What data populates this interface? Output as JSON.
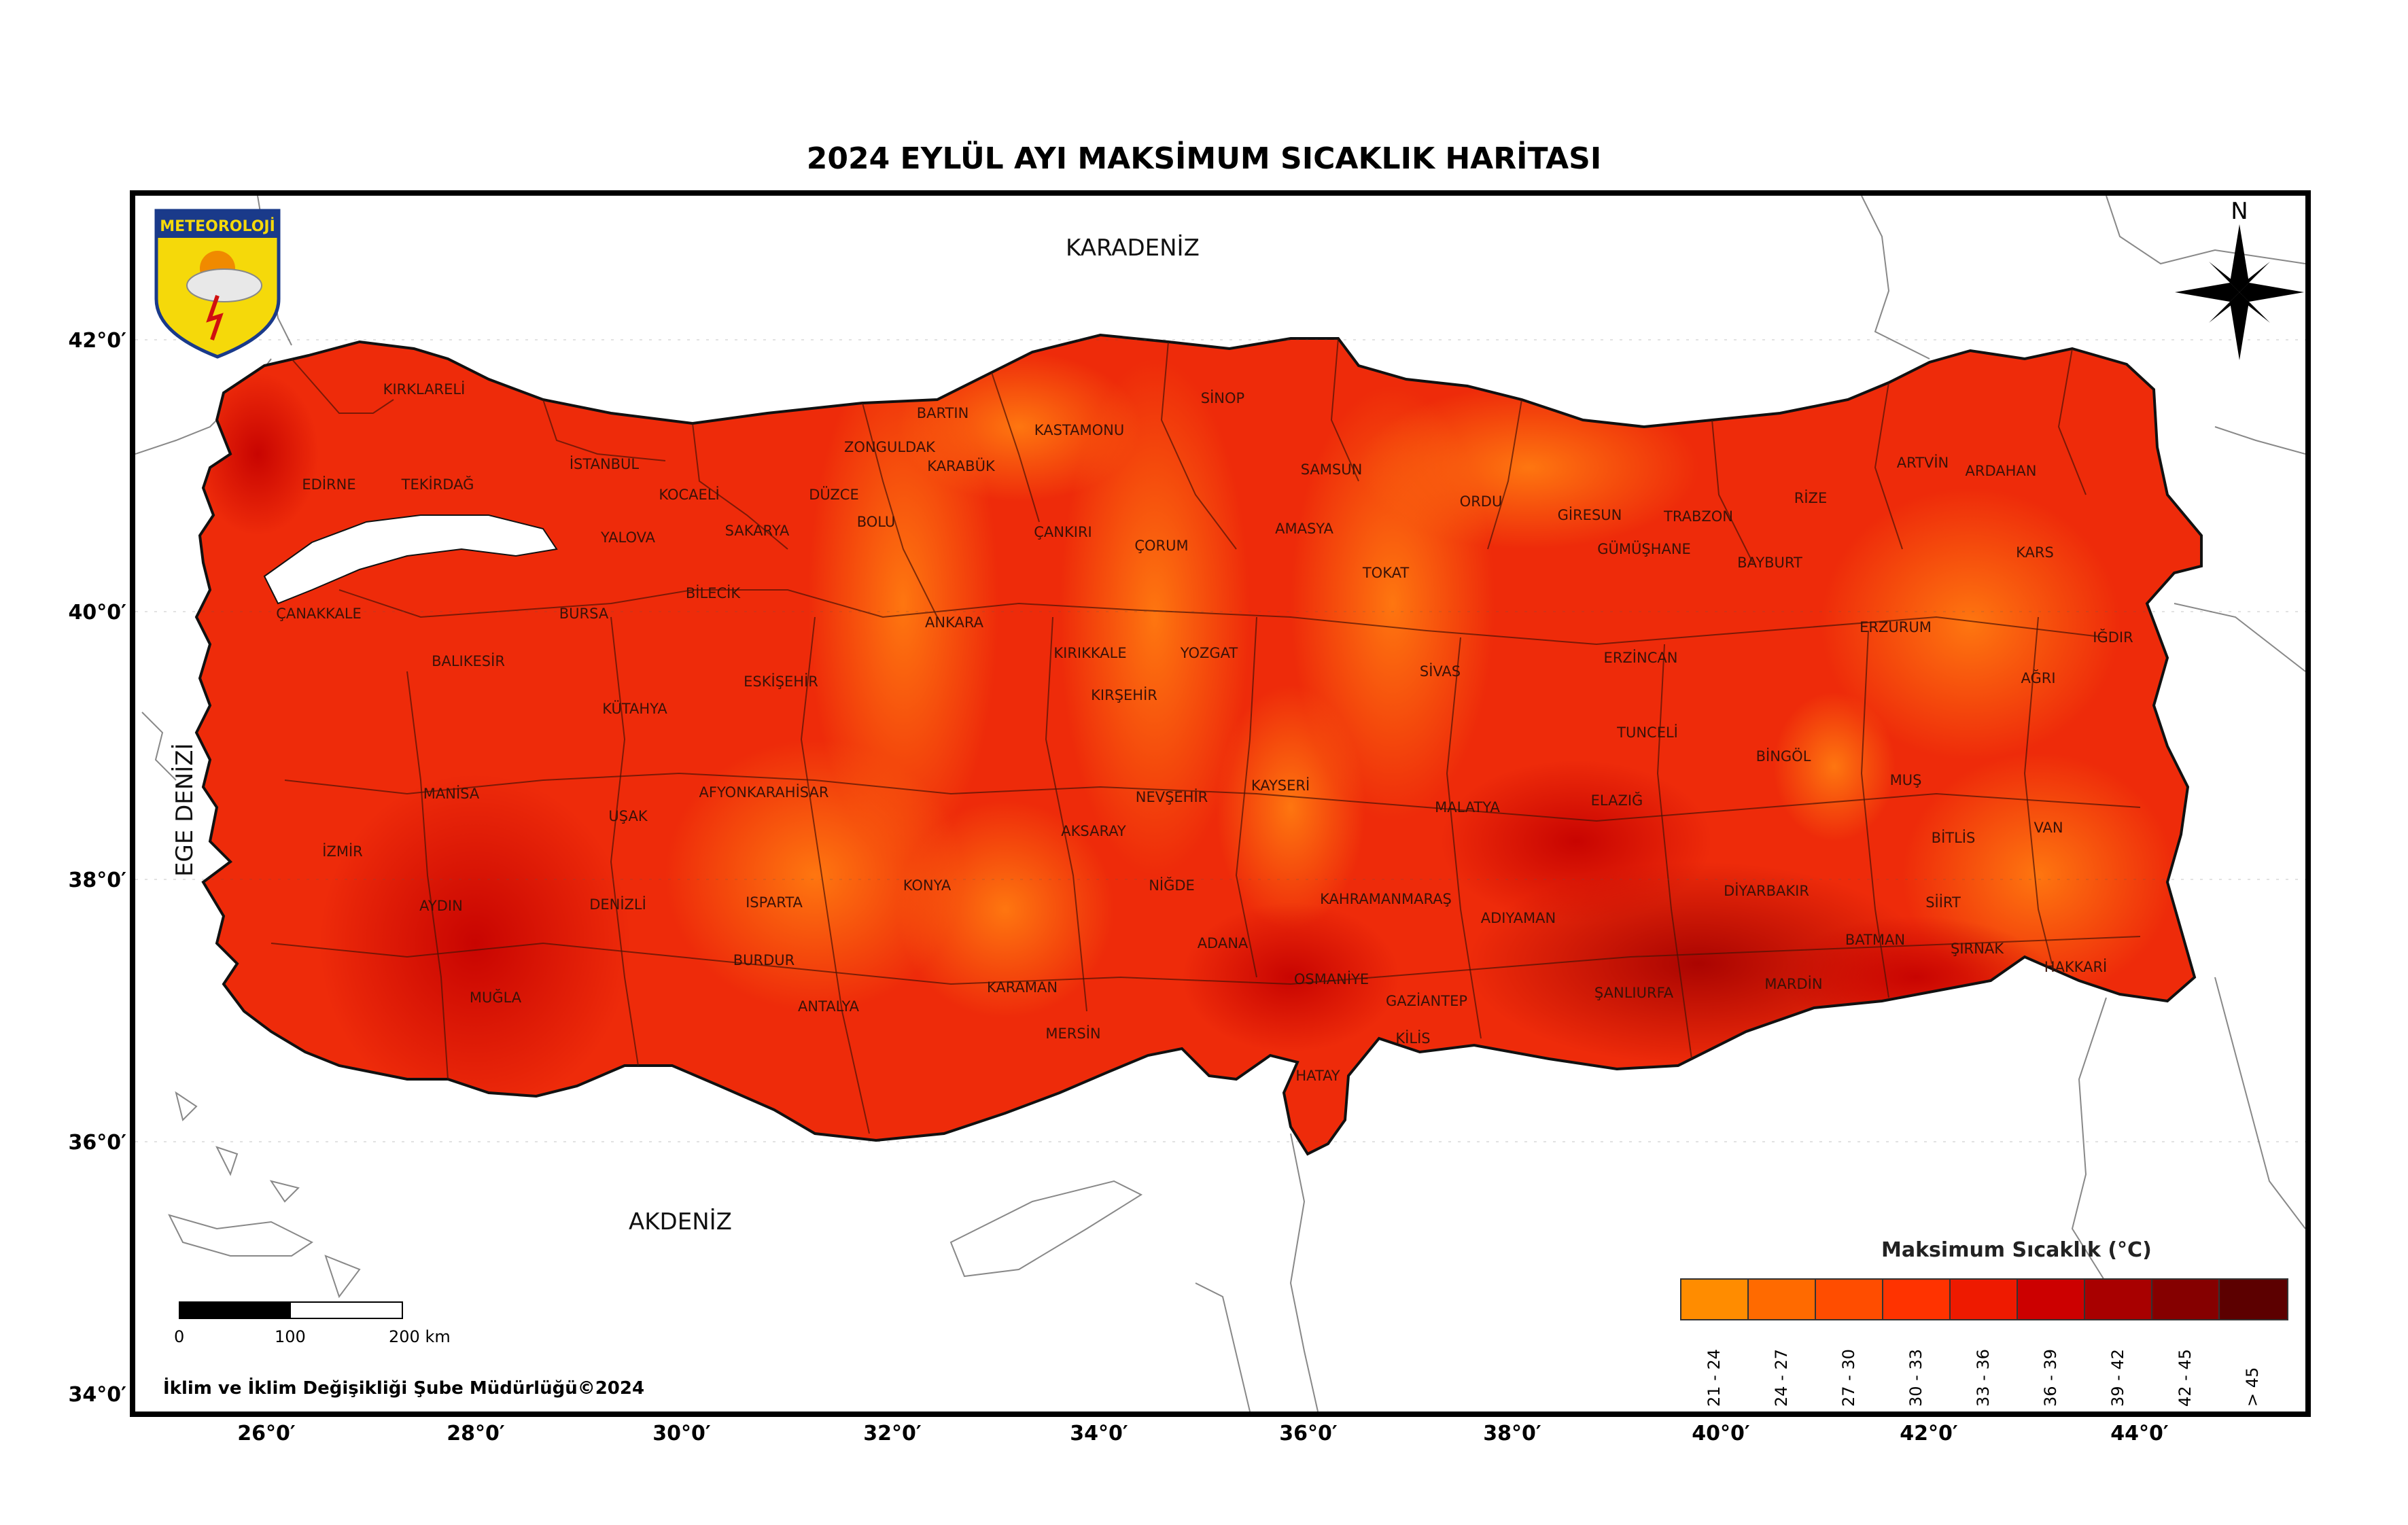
{
  "title": "2024 EYLÜL AYI MAKSİMUM SICAKLIK HARİTASI",
  "seas": {
    "north": "KARADENİZ",
    "south": "AKDENİZ",
    "west": "EGE DENİZİ"
  },
  "latitude_labels": [
    "42°0′",
    "40°0′",
    "38°0′",
    "36°0′",
    "34°0′"
  ],
  "longitude_labels": [
    "26°0′",
    "28°0′",
    "30°0′",
    "32°0′",
    "34°0′",
    "36°0′",
    "38°0′",
    "40°0′",
    "42°0′",
    "44°0′"
  ],
  "logo_text": "METEOROLOJİ",
  "compass_label": "N",
  "legend": {
    "title": "Maksimum Sıcaklık (°C)",
    "classes": [
      {
        "label": "21 - 24",
        "color": "#ff8c00"
      },
      {
        "label": "24 - 27",
        "color": "#ff6a00"
      },
      {
        "label": "27 - 30",
        "color": "#ff4d00"
      },
      {
        "label": "30 - 33",
        "color": "#ff3300"
      },
      {
        "label": "33 - 36",
        "color": "#ee1a00"
      },
      {
        "label": "36 - 39",
        "color": "#cc0000"
      },
      {
        "label": "39 - 42",
        "color": "#a80000"
      },
      {
        "label": "42 - 45",
        "color": "#850000"
      },
      {
        "label": "> 45",
        "color": "#5c0000"
      }
    ]
  },
  "scale": {
    "labels": [
      "0",
      "100",
      "200 km"
    ]
  },
  "credit": "İklim ve İklim Değişikliği Şube Müdürlüğü©2024",
  "provinces": [
    "KIRKLARELİ",
    "EDİRNE",
    "TEKİRDAĞ",
    "İSTANBUL",
    "KOCAELİ",
    "YALOVA",
    "SAKARYA",
    "DÜZCE",
    "BOLU",
    "ZONGULDAK",
    "BARTIN",
    "KARABÜK",
    "KASTAMONU",
    "SİNOP",
    "SAMSUN",
    "ÇANKIRI",
    "ÇORUM",
    "AMASYA",
    "TOKAT",
    "ORDU",
    "GİRESUN",
    "TRABZON",
    "RİZE",
    "ARTVİN",
    "ARDAHAN",
    "KARS",
    "IĞDIR",
    "AĞRI",
    "ERZURUM",
    "BAYBURT",
    "GÜMÜŞHANE",
    "ERZİNCAN",
    "TUNCELİ",
    "BİNGÖL",
    "MUŞ",
    "BİTLİS",
    "VAN",
    "HAKKARİ",
    "ŞIRNAK",
    "SİİRT",
    "BATMAN",
    "MARDİN",
    "DİYARBAKIR",
    "ŞANLIURFA",
    "ADIYAMAN",
    "MALATYA",
    "ELAZIĞ",
    "SİVAS",
    "YOZGAT",
    "KIRIKKALE",
    "KIRŞEHİR",
    "ANKARA",
    "ESKİŞEHİR",
    "BİLECİK",
    "BURSA",
    "BALIKESİR",
    "ÇANAKKALE",
    "KÜTAHYA",
    "MANİSA",
    "İZMİR",
    "AYDIN",
    "MUĞLA",
    "DENİZLİ",
    "UŞAK",
    "AFYONKARAHİSAR",
    "ISPARTA",
    "BURDUR",
    "ANTALYA",
    "KONYA",
    "KARAMAN",
    "AKSARAY",
    "NEVŞEHİR",
    "NİĞDE",
    "KAYSERİ",
    "ADANA",
    "MERSİN",
    "OSMANİYE",
    "HATAY",
    "GAZİANTEP",
    "KİLİS",
    "KAHRAMANMARAŞ"
  ]
}
